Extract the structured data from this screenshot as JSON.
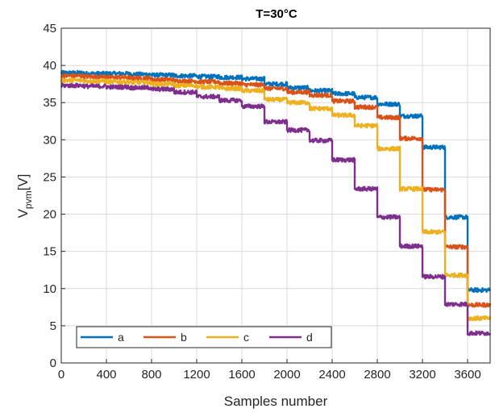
{
  "chart_data": {
    "type": "line",
    "title": "T=30°C",
    "xlabel": "Samples number",
    "ylabel_main": "V",
    "ylabel_sub": "pvm",
    "ylabel_unit": "[V]",
    "xlim": [
      0,
      3800
    ],
    "ylim": [
      0,
      45
    ],
    "xticks": [
      0,
      400,
      800,
      1200,
      1600,
      2000,
      2400,
      2800,
      3200,
      3600
    ],
    "xtick_labels": [
      "0",
      "400",
      "800",
      "1200",
      "1600",
      "2000",
      "2400",
      "2800",
      "3200",
      "3600"
    ],
    "yticks": [
      0,
      5,
      10,
      15,
      20,
      25,
      30,
      35,
      40,
      45
    ],
    "ytick_labels": [
      "0",
      "5",
      "10",
      "15",
      "20",
      "25",
      "30",
      "35",
      "40",
      "45"
    ],
    "grid": true,
    "legend_position": "bottom-left",
    "step_width": 200,
    "series": [
      {
        "name": "a",
        "color": "#0072BD",
        "levels": [
          39.0,
          38.9,
          38.9,
          38.8,
          38.7,
          38.6,
          38.5,
          38.4,
          38.2,
          37.5,
          37.0,
          36.6,
          36.2,
          35.7,
          34.8,
          33.2,
          29.0,
          19.6,
          9.8
        ]
      },
      {
        "name": "b",
        "color": "#D95319",
        "levels": [
          38.6,
          38.5,
          38.4,
          38.3,
          38.1,
          37.9,
          37.8,
          37.6,
          37.4,
          36.9,
          36.4,
          36.0,
          35.2,
          34.4,
          33.0,
          30.2,
          23.3,
          15.6,
          7.8
        ]
      },
      {
        "name": "c",
        "color": "#EDB120",
        "levels": [
          38.0,
          37.9,
          37.8,
          37.7,
          37.5,
          37.3,
          37.1,
          36.9,
          36.6,
          35.4,
          35.0,
          34.2,
          33.3,
          31.9,
          28.8,
          23.4,
          17.6,
          11.8,
          6.0
        ]
      },
      {
        "name": "d",
        "color": "#7E2F8E",
        "levels": [
          37.3,
          37.2,
          37.1,
          37.0,
          36.8,
          36.4,
          35.8,
          35.3,
          34.5,
          32.4,
          31.3,
          29.9,
          27.3,
          23.4,
          19.6,
          15.7,
          11.6,
          7.9,
          4.0
        ]
      }
    ]
  }
}
